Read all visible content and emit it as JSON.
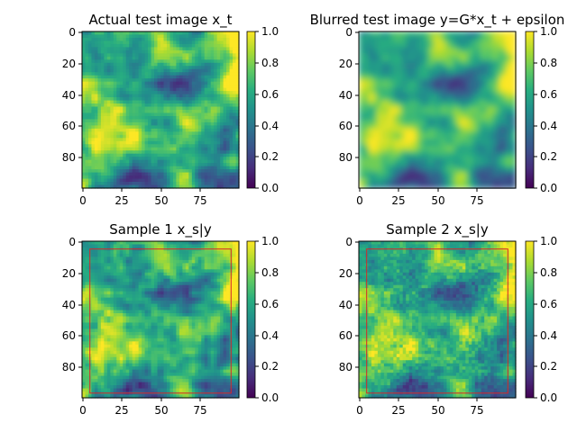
{
  "chart_data": [
    {
      "type": "heatmap",
      "title": "Actual test image x_t",
      "xticks": [
        "0",
        "25",
        "50",
        "75"
      ],
      "yticks": [
        "0",
        "20",
        "40",
        "60",
        "80"
      ],
      "xlim": [
        0,
        99
      ],
      "ylim": [
        99,
        0
      ],
      "colorbar": {
        "ticks": [
          "0.0",
          "0.2",
          "0.4",
          "0.6",
          "0.8",
          "1.0"
        ],
        "range": [
          0,
          1
        ],
        "colormap": "viridis"
      },
      "blurred": false,
      "highlight_box": null
    },
    {
      "type": "heatmap",
      "title": "Blurred test image y=G*x_t + epsilon",
      "xticks": [
        "0",
        "25",
        "50",
        "75"
      ],
      "yticks": [
        "0",
        "20",
        "40",
        "60",
        "80"
      ],
      "xlim": [
        0,
        99
      ],
      "ylim": [
        99,
        0
      ],
      "colorbar": {
        "ticks": [
          "0.0",
          "0.2",
          "0.4",
          "0.6",
          "0.8",
          "1.0"
        ],
        "range": [
          0,
          1
        ],
        "colormap": "viridis"
      },
      "blurred": true,
      "highlight_box": null
    },
    {
      "type": "heatmap",
      "title": "Sample 1 x_s|y",
      "xticks": [
        "0",
        "25",
        "50",
        "75"
      ],
      "yticks": [
        "0",
        "20",
        "40",
        "60",
        "80"
      ],
      "xlim": [
        0,
        99
      ],
      "ylim": [
        99,
        0
      ],
      "colorbar": {
        "ticks": [
          "0.0",
          "0.2",
          "0.4",
          "0.6",
          "0.8",
          "1.0"
        ],
        "range": [
          0,
          1
        ],
        "colormap": "viridis"
      },
      "blurred": false,
      "highlight_box": {
        "x": [
          5,
          95
        ],
        "y": [
          5,
          97
        ],
        "color": "#d62728"
      }
    },
    {
      "type": "heatmap",
      "title": "Sample 2 x_s|y",
      "xticks": [
        "0",
        "25",
        "50",
        "75"
      ],
      "yticks": [
        "0",
        "20",
        "40",
        "60",
        "80"
      ],
      "xlim": [
        0,
        99
      ],
      "ylim": [
        99,
        0
      ],
      "colorbar": {
        "ticks": [
          "0.0",
          "0.2",
          "0.4",
          "0.6",
          "0.8",
          "1.0"
        ],
        "range": [
          0,
          1
        ],
        "colormap": "viridis"
      },
      "blurred": false,
      "highlight_box": {
        "x": [
          5,
          95
        ],
        "y": [
          5,
          97
        ],
        "color": "#d62728"
      }
    }
  ]
}
